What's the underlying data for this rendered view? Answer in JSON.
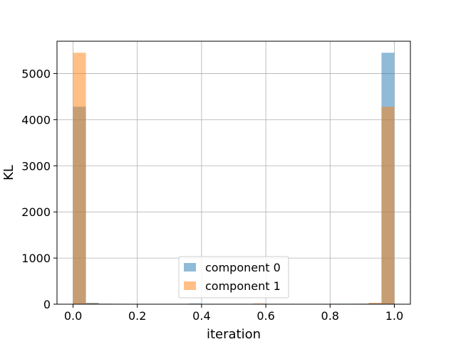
{
  "chart_data": {
    "type": "histogram",
    "title": "",
    "xlabel": "iteration",
    "ylabel": "KL",
    "xlim": [
      -0.05,
      1.05
    ],
    "ylim": [
      0,
      5700
    ],
    "x_ticks": [
      0.0,
      0.2,
      0.4,
      0.6,
      0.8,
      1.0
    ],
    "x_tick_labels": [
      "0.0",
      "0.2",
      "0.4",
      "0.6",
      "0.8",
      "1.0"
    ],
    "y_ticks": [
      0,
      1000,
      2000,
      3000,
      4000,
      5000
    ],
    "y_tick_labels": [
      "0",
      "1000",
      "2000",
      "3000",
      "4000",
      "5000"
    ],
    "grid": true,
    "legend_position": "lower center",
    "bin_edges": [
      0.0,
      0.04,
      0.08,
      0.12,
      0.16,
      0.2,
      0.24,
      0.28,
      0.32,
      0.36,
      0.4,
      0.44,
      0.48,
      0.52,
      0.56,
      0.6,
      0.64,
      0.68,
      0.72,
      0.76,
      0.8,
      0.84,
      0.88,
      0.92,
      0.96,
      1.0
    ],
    "series": [
      {
        "name": "component 0",
        "color": "#1f77b4",
        "alpha": 0.5,
        "counts": [
          4280,
          30,
          10,
          5,
          3,
          0,
          0,
          0,
          0,
          15,
          0,
          0,
          0,
          0,
          0,
          0,
          0,
          0,
          0,
          0,
          10,
          10,
          10,
          20,
          5450
        ]
      },
      {
        "name": "component 1",
        "color": "#ff7f0e",
        "alpha": 0.5,
        "counts": [
          5450,
          20,
          10,
          10,
          5,
          0,
          0,
          0,
          0,
          0,
          0,
          0,
          0,
          0,
          15,
          0,
          0,
          0,
          0,
          0,
          3,
          5,
          10,
          30,
          4280
        ]
      }
    ]
  }
}
